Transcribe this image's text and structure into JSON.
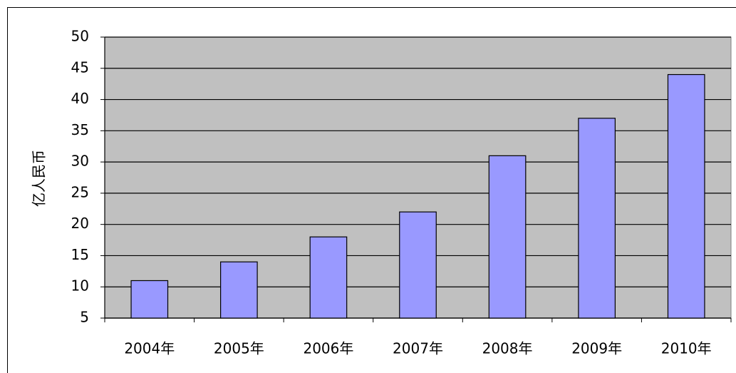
{
  "chart_data": {
    "type": "bar",
    "y_label": "亿人民币",
    "categories": [
      "2004年",
      "2005年",
      "2006年",
      "2007年",
      "2008年",
      "2009年",
      "2010年"
    ],
    "values": [
      11,
      14,
      18,
      22,
      31,
      37,
      44
    ],
    "color": "#9999ff",
    "ylim": [
      5,
      50
    ],
    "yticks": [
      5,
      10,
      15,
      20,
      25,
      30,
      35,
      40,
      45,
      50
    ],
    "grid": true
  }
}
